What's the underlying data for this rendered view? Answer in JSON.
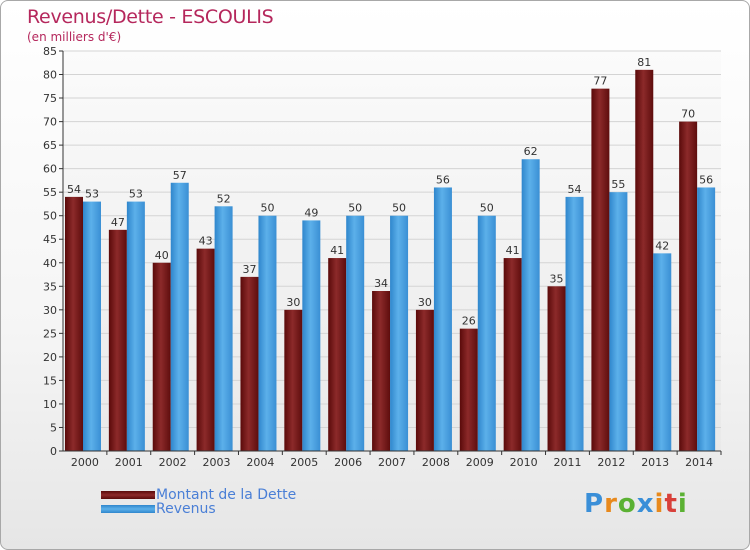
{
  "header": {
    "title": "Revenus/Dette - ESCOULIS",
    "subtitle": "(en milliers d'€)"
  },
  "legend": {
    "debt_label": "Montant de la Dette",
    "revenue_label": "Revenus"
  },
  "logo": {
    "text": "Proxiti",
    "letters": [
      "P",
      "r",
      "o",
      "x",
      "i",
      "t",
      "i"
    ],
    "colors": [
      "#3a8fd8",
      "#e8891c",
      "#5bb133",
      "#3a8fd8",
      "#e8891c",
      "#d8403a",
      "#5bb133"
    ]
  },
  "colors": {
    "debt": "#7a1a1a",
    "revenue": "#4aa0e0",
    "title": "#b5275c",
    "legend_text": "#4a7fd6"
  },
  "chart_data": {
    "type": "bar",
    "title": "Revenus/Dette - ESCOULIS",
    "subtitle": "(en milliers d'€)",
    "xlabel": "",
    "ylabel": "",
    "ylim": [
      0,
      85
    ],
    "yticks": [
      0,
      5,
      10,
      15,
      20,
      25,
      30,
      35,
      40,
      45,
      50,
      55,
      60,
      65,
      70,
      75,
      80,
      85
    ],
    "grid": true,
    "legend_position": "bottom-left",
    "categories": [
      "2000",
      "2001",
      "2002",
      "2003",
      "2004",
      "2005",
      "2006",
      "2007",
      "2008",
      "2009",
      "2010",
      "2011",
      "2012",
      "2013",
      "2014"
    ],
    "series": [
      {
        "name": "Montant de la Dette",
        "values": [
          54,
          47,
          40,
          43,
          37,
          30,
          41,
          34,
          30,
          26,
          41,
          35,
          77,
          81,
          70
        ]
      },
      {
        "name": "Revenus",
        "values": [
          53,
          53,
          57,
          52,
          50,
          49,
          50,
          50,
          56,
          50,
          62,
          54,
          55,
          42,
          56
        ]
      }
    ]
  }
}
